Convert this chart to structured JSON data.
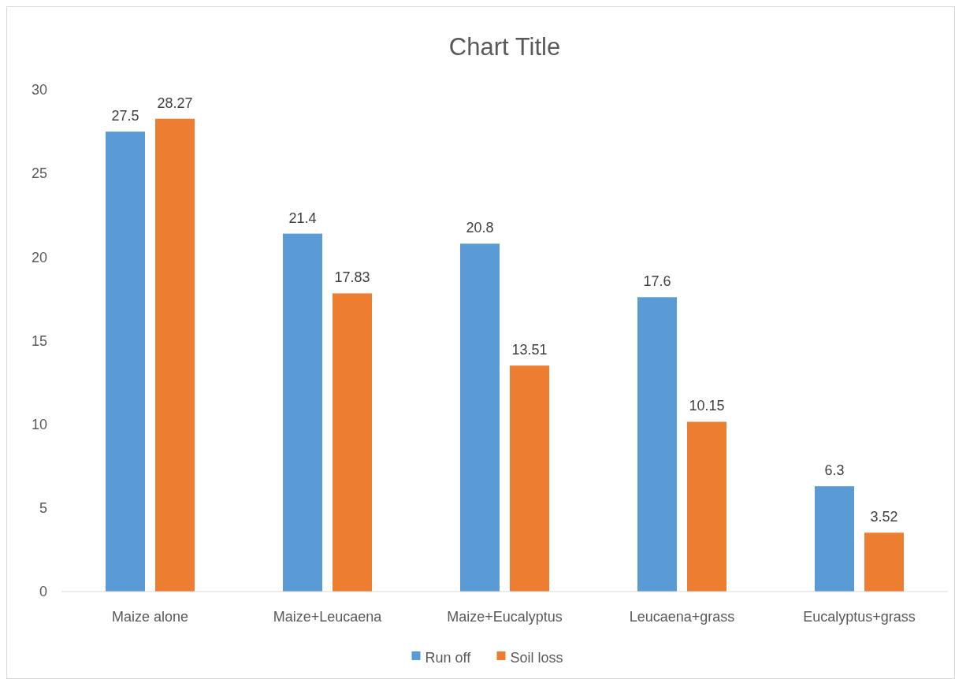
{
  "chart_data": {
    "type": "bar",
    "title": "Chart Title",
    "categories": [
      "Maize alone",
      "Maize+Leucaena",
      "Maize+Eucalyptus",
      "Leucaena+grass",
      "Eucalyptus+grass"
    ],
    "series": [
      {
        "name": "Run off",
        "color": "#5b9bd5",
        "values": [
          27.5,
          21.4,
          20.8,
          17.6,
          6.3
        ]
      },
      {
        "name": "Soil loss",
        "color": "#ed7d31",
        "values": [
          28.27,
          17.83,
          13.51,
          10.15,
          3.52
        ]
      }
    ],
    "ylim": [
      0,
      30
    ],
    "yticks": [
      0,
      5,
      10,
      15,
      20,
      25,
      30
    ],
    "grid": false,
    "legend": "bottom",
    "data_labels": true
  }
}
